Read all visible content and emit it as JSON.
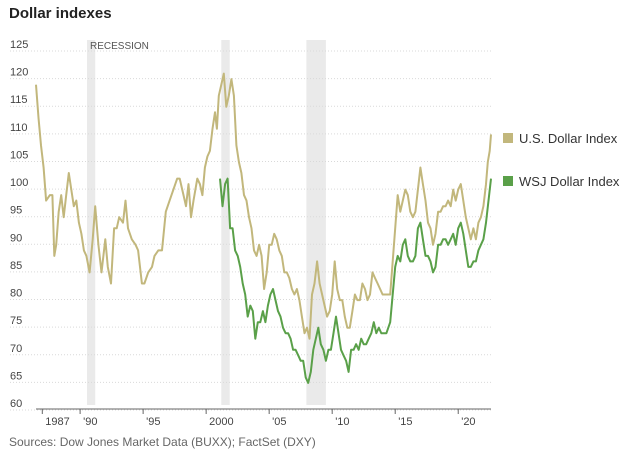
{
  "chart_data": {
    "type": "line",
    "title": "Dollar indexes",
    "source": "Sources: Dow Jones Market Data (BUXX); FactSet (DXY)",
    "annotation": "RECESSION",
    "recessions": [
      [
        1990.55,
        1991.2
      ],
      [
        2001.2,
        2001.87
      ],
      [
        2007.95,
        2009.5
      ]
    ],
    "ylim": [
      60,
      125
    ],
    "xlim": [
      1986.5,
      2022.6
    ],
    "y_ticks": [
      60,
      65,
      70,
      75,
      80,
      85,
      90,
      95,
      100,
      105,
      110,
      115,
      120,
      125
    ],
    "x_ticks": [
      {
        "value": 1987,
        "label": "1987"
      },
      {
        "value": 1990,
        "label": "'90"
      },
      {
        "value": 1995,
        "label": "'95"
      },
      {
        "value": 2000,
        "label": "2000"
      },
      {
        "value": 2005,
        "label": "'05"
      },
      {
        "value": 2010,
        "label": "'10"
      },
      {
        "value": 2015,
        "label": "'15"
      },
      {
        "value": 2020,
        "label": "'20"
      }
    ],
    "grid": true,
    "legend_position": "right",
    "series": [
      {
        "name": "U.S. Dollar Index",
        "color": "#c2b77c",
        "points": [
          [
            1986.5,
            118
          ],
          [
            1986.7,
            112
          ],
          [
            1986.9,
            107
          ],
          [
            1987.1,
            103
          ],
          [
            1987.3,
            97
          ],
          [
            1987.6,
            98
          ],
          [
            1987.8,
            98
          ],
          [
            1987.95,
            87
          ],
          [
            1988.1,
            89
          ],
          [
            1988.3,
            95
          ],
          [
            1988.5,
            98
          ],
          [
            1988.7,
            94
          ],
          [
            1988.9,
            98
          ],
          [
            1989.1,
            102
          ],
          [
            1989.3,
            99
          ],
          [
            1989.5,
            96
          ],
          [
            1989.7,
            97
          ],
          [
            1989.9,
            93
          ],
          [
            1990.1,
            91
          ],
          [
            1990.3,
            88
          ],
          [
            1990.5,
            87
          ],
          [
            1990.75,
            84
          ],
          [
            1991.0,
            90
          ],
          [
            1991.2,
            96
          ],
          [
            1991.45,
            89
          ],
          [
            1991.7,
            84
          ],
          [
            1992.0,
            90
          ],
          [
            1992.2,
            85
          ],
          [
            1992.45,
            82
          ],
          [
            1992.7,
            92
          ],
          [
            1992.9,
            92
          ],
          [
            1993.1,
            94
          ],
          [
            1993.4,
            93
          ],
          [
            1993.6,
            97
          ],
          [
            1993.8,
            92
          ],
          [
            1994.1,
            90
          ],
          [
            1994.4,
            89
          ],
          [
            1994.6,
            88
          ],
          [
            1994.9,
            82
          ],
          [
            1995.1,
            82
          ],
          [
            1995.4,
            84
          ],
          [
            1995.7,
            85
          ],
          [
            1995.9,
            87
          ],
          [
            1996.2,
            88
          ],
          [
            1996.5,
            88
          ],
          [
            1996.8,
            95
          ],
          [
            1997.1,
            97
          ],
          [
            1997.4,
            99
          ],
          [
            1997.7,
            101
          ],
          [
            1997.9,
            101
          ],
          [
            1998.2,
            98
          ],
          [
            1998.4,
            96
          ],
          [
            1998.6,
            100
          ],
          [
            1998.8,
            94
          ],
          [
            1999.0,
            97
          ],
          [
            1999.3,
            101
          ],
          [
            1999.5,
            100
          ],
          [
            1999.7,
            98
          ],
          [
            1999.9,
            103
          ],
          [
            2000.1,
            105
          ],
          [
            2000.3,
            106
          ],
          [
            2000.5,
            110
          ],
          [
            2000.7,
            113
          ],
          [
            2000.85,
            110
          ],
          [
            2001.0,
            116
          ],
          [
            2001.2,
            118
          ],
          [
            2001.4,
            120
          ],
          [
            2001.6,
            114
          ],
          [
            2001.8,
            116
          ],
          [
            2002.0,
            119
          ],
          [
            2002.2,
            116
          ],
          [
            2002.4,
            107
          ],
          [
            2002.6,
            104
          ],
          [
            2002.8,
            102
          ],
          [
            2003.0,
            98
          ],
          [
            2003.2,
            97
          ],
          [
            2003.4,
            94
          ],
          [
            2003.6,
            92
          ],
          [
            2003.8,
            88
          ],
          [
            2004.0,
            87
          ],
          [
            2004.2,
            89
          ],
          [
            2004.4,
            87
          ],
          [
            2004.6,
            81
          ],
          [
            2004.8,
            84
          ],
          [
            2005.0,
            89
          ],
          [
            2005.2,
            89
          ],
          [
            2005.4,
            91
          ],
          [
            2005.6,
            90
          ],
          [
            2005.8,
            88
          ],
          [
            2006.0,
            87
          ],
          [
            2006.2,
            84
          ],
          [
            2006.4,
            84
          ],
          [
            2006.6,
            83
          ],
          [
            2006.8,
            81
          ],
          [
            2007.0,
            80
          ],
          [
            2007.2,
            81
          ],
          [
            2007.4,
            79
          ],
          [
            2007.6,
            76
          ],
          [
            2007.8,
            73
          ],
          [
            2008.0,
            74
          ],
          [
            2008.2,
            72
          ],
          [
            2008.4,
            80
          ],
          [
            2008.6,
            82
          ],
          [
            2008.8,
            86
          ],
          [
            2009.0,
            82
          ],
          [
            2009.2,
            80
          ],
          [
            2009.4,
            78
          ],
          [
            2009.6,
            76
          ],
          [
            2009.8,
            77
          ],
          [
            2010.0,
            80
          ],
          [
            2010.2,
            86
          ],
          [
            2010.4,
            81
          ],
          [
            2010.6,
            79
          ],
          [
            2010.8,
            79
          ],
          [
            2011.0,
            76
          ],
          [
            2011.2,
            74
          ],
          [
            2011.4,
            74
          ],
          [
            2011.6,
            77
          ],
          [
            2011.8,
            80
          ],
          [
            2012.0,
            79
          ],
          [
            2012.2,
            79
          ],
          [
            2012.4,
            82
          ],
          [
            2012.6,
            81
          ],
          [
            2012.8,
            79
          ],
          [
            2013.0,
            80
          ],
          [
            2013.2,
            84
          ],
          [
            2013.4,
            83
          ],
          [
            2013.6,
            82
          ],
          [
            2013.8,
            81
          ],
          [
            2014.0,
            80
          ],
          [
            2014.3,
            80
          ],
          [
            2014.6,
            80
          ],
          [
            2014.8,
            86
          ],
          [
            2015.0,
            92
          ],
          [
            2015.2,
            98
          ],
          [
            2015.4,
            95
          ],
          [
            2015.6,
            97
          ],
          [
            2015.8,
            99
          ],
          [
            2016.0,
            98
          ],
          [
            2016.2,
            95
          ],
          [
            2016.4,
            94
          ],
          [
            2016.6,
            95
          ],
          [
            2016.8,
            99
          ],
          [
            2017.0,
            103
          ],
          [
            2017.2,
            100
          ],
          [
            2017.4,
            97
          ],
          [
            2017.6,
            93
          ],
          [
            2017.8,
            92
          ],
          [
            2018.0,
            89
          ],
          [
            2018.2,
            91
          ],
          [
            2018.4,
            95
          ],
          [
            2018.6,
            95
          ],
          [
            2018.8,
            96
          ],
          [
            2019.0,
            96
          ],
          [
            2019.2,
            97
          ],
          [
            2019.4,
            96
          ],
          [
            2019.6,
            99
          ],
          [
            2019.8,
            97
          ],
          [
            2020.0,
            99
          ],
          [
            2020.2,
            100
          ],
          [
            2020.4,
            97
          ],
          [
            2020.6,
            94
          ],
          [
            2020.8,
            92
          ],
          [
            2021.0,
            90
          ],
          [
            2021.2,
            92
          ],
          [
            2021.4,
            90
          ],
          [
            2021.6,
            93
          ],
          [
            2021.8,
            94
          ],
          [
            2022.0,
            96
          ],
          [
            2022.2,
            100
          ],
          [
            2022.35,
            104
          ],
          [
            2022.5,
            106
          ],
          [
            2022.6,
            109
          ]
        ]
      },
      {
        "name": "WSJ Dollar Index",
        "color": "#5aa049",
        "points": [
          [
            2001.1,
            101
          ],
          [
            2001.3,
            96
          ],
          [
            2001.5,
            100
          ],
          [
            2001.7,
            101
          ],
          [
            2001.9,
            92
          ],
          [
            2002.1,
            92
          ],
          [
            2002.3,
            88
          ],
          [
            2002.5,
            87
          ],
          [
            2002.7,
            85
          ],
          [
            2002.9,
            82
          ],
          [
            2003.1,
            80
          ],
          [
            2003.3,
            76
          ],
          [
            2003.5,
            78
          ],
          [
            2003.7,
            77
          ],
          [
            2003.9,
            72
          ],
          [
            2004.1,
            75
          ],
          [
            2004.3,
            75
          ],
          [
            2004.5,
            77
          ],
          [
            2004.7,
            75
          ],
          [
            2004.9,
            78
          ],
          [
            2005.1,
            80
          ],
          [
            2005.3,
            81
          ],
          [
            2005.5,
            79
          ],
          [
            2005.7,
            77
          ],
          [
            2005.9,
            76
          ],
          [
            2006.1,
            74
          ],
          [
            2006.3,
            73
          ],
          [
            2006.5,
            73
          ],
          [
            2006.7,
            72
          ],
          [
            2006.9,
            70
          ],
          [
            2007.1,
            70
          ],
          [
            2007.3,
            69
          ],
          [
            2007.5,
            68
          ],
          [
            2007.7,
            68
          ],
          [
            2007.9,
            65
          ],
          [
            2008.1,
            64
          ],
          [
            2008.3,
            66
          ],
          [
            2008.5,
            70
          ],
          [
            2008.7,
            72
          ],
          [
            2008.9,
            74
          ],
          [
            2009.1,
            71
          ],
          [
            2009.3,
            70
          ],
          [
            2009.5,
            68
          ],
          [
            2009.7,
            70
          ],
          [
            2009.9,
            70
          ],
          [
            2010.1,
            73
          ],
          [
            2010.3,
            76
          ],
          [
            2010.5,
            73
          ],
          [
            2010.7,
            70
          ],
          [
            2010.9,
            69
          ],
          [
            2011.1,
            68
          ],
          [
            2011.3,
            66
          ],
          [
            2011.5,
            70
          ],
          [
            2011.7,
            70
          ],
          [
            2011.9,
            71
          ],
          [
            2012.1,
            70
          ],
          [
            2012.3,
            72
          ],
          [
            2012.5,
            71
          ],
          [
            2012.7,
            71
          ],
          [
            2012.9,
            72
          ],
          [
            2013.1,
            73
          ],
          [
            2013.3,
            75
          ],
          [
            2013.5,
            73
          ],
          [
            2013.7,
            74
          ],
          [
            2013.9,
            73
          ],
          [
            2014.1,
            73
          ],
          [
            2014.3,
            73
          ],
          [
            2014.6,
            75
          ],
          [
            2014.8,
            80
          ],
          [
            2015.0,
            85
          ],
          [
            2015.2,
            87
          ],
          [
            2015.4,
            86
          ],
          [
            2015.6,
            89
          ],
          [
            2015.8,
            90
          ],
          [
            2016.0,
            87
          ],
          [
            2016.2,
            86
          ],
          [
            2016.4,
            86
          ],
          [
            2016.6,
            87
          ],
          [
            2016.8,
            92
          ],
          [
            2017.0,
            93
          ],
          [
            2017.2,
            90
          ],
          [
            2017.4,
            87
          ],
          [
            2017.6,
            87
          ],
          [
            2017.8,
            86
          ],
          [
            2018.0,
            84
          ],
          [
            2018.2,
            85
          ],
          [
            2018.4,
            89
          ],
          [
            2018.6,
            89
          ],
          [
            2018.8,
            90
          ],
          [
            2019.0,
            90
          ],
          [
            2019.2,
            89
          ],
          [
            2019.4,
            90
          ],
          [
            2019.6,
            91
          ],
          [
            2019.8,
            89
          ],
          [
            2020.0,
            92
          ],
          [
            2020.2,
            93
          ],
          [
            2020.4,
            91
          ],
          [
            2020.6,
            88
          ],
          [
            2020.8,
            85
          ],
          [
            2021.0,
            85
          ],
          [
            2021.2,
            86
          ],
          [
            2021.4,
            86
          ],
          [
            2021.6,
            88
          ],
          [
            2021.8,
            89
          ],
          [
            2022.0,
            90
          ],
          [
            2022.2,
            93
          ],
          [
            2022.4,
            97
          ],
          [
            2022.6,
            101
          ]
        ]
      }
    ]
  }
}
